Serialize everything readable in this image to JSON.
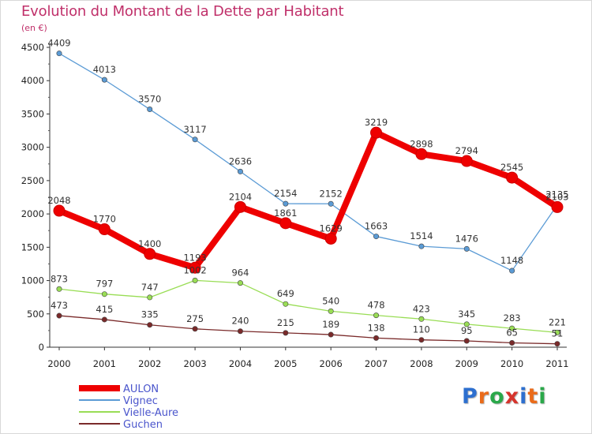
{
  "page": {
    "title": "Evolution du Montant de la Dette par Habitant",
    "subtitle": "(en €)",
    "brand": "Proxiti"
  },
  "chart_data": {
    "type": "line",
    "title": "Evolution du Montant de la Dette par Habitant",
    "subtitle": "(en €)",
    "x": [
      "2000",
      "2001",
      "2002",
      "2003",
      "2004",
      "2005",
      "2006",
      "2007",
      "2008",
      "2009",
      "2010",
      "2011"
    ],
    "ylim": [
      0,
      4500
    ],
    "yticks": [
      0,
      500,
      1000,
      1500,
      2000,
      2500,
      3000,
      3500,
      4000,
      4500
    ],
    "grid": false,
    "legend_position": "bottom-left",
    "series": [
      {
        "name": "AULON",
        "color": "#ee0000",
        "width": 8,
        "marker": 7,
        "values": [
          2048,
          1770,
          1400,
          1193,
          2104,
          1861,
          1629,
          3219,
          2898,
          2794,
          2545,
          2103
        ]
      },
      {
        "name": "Vignec",
        "color": "#5b9bd5",
        "width": 1.3,
        "marker": 3.2,
        "values": [
          4409,
          4013,
          3570,
          3117,
          2636,
          2154,
          2152,
          1663,
          1514,
          1476,
          1148,
          2135
        ]
      },
      {
        "name": "Vielle-Aure",
        "color": "#99dd55",
        "width": 1.3,
        "marker": 3.2,
        "values": [
          873,
          797,
          747,
          1002,
          964,
          649,
          540,
          478,
          423,
          345,
          283,
          221
        ]
      },
      {
        "name": "Guchen",
        "color": "#7a2a2a",
        "width": 1.3,
        "marker": 3.2,
        "values": [
          473,
          415,
          335,
          275,
          240,
          215,
          189,
          138,
          110,
          95,
          65,
          51
        ]
      }
    ]
  }
}
